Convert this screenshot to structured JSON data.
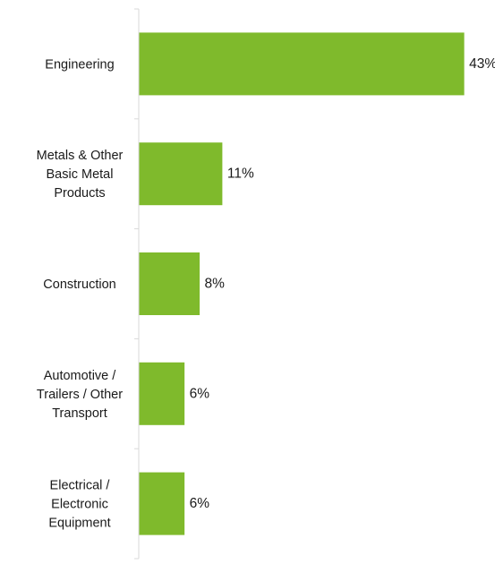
{
  "chart_data": {
    "type": "bar",
    "orientation": "horizontal",
    "categories": [
      [
        "Engineering"
      ],
      [
        "Metals & Other",
        "Basic Metal",
        "Products"
      ],
      [
        "Construction"
      ],
      [
        "Automotive /",
        "Trailers / Other",
        "Transport"
      ],
      [
        "Electrical /",
        "Electronic",
        "Equipment"
      ]
    ],
    "values": [
      43,
      11,
      8,
      6,
      6
    ],
    "value_labels": [
      "43%",
      "11%",
      "8%",
      "6%",
      "6%"
    ],
    "xlim": [
      0,
      45
    ],
    "grid": false,
    "legend": "none",
    "bar_color": "#7fba2c",
    "axis_color": "#d9d9d9"
  }
}
